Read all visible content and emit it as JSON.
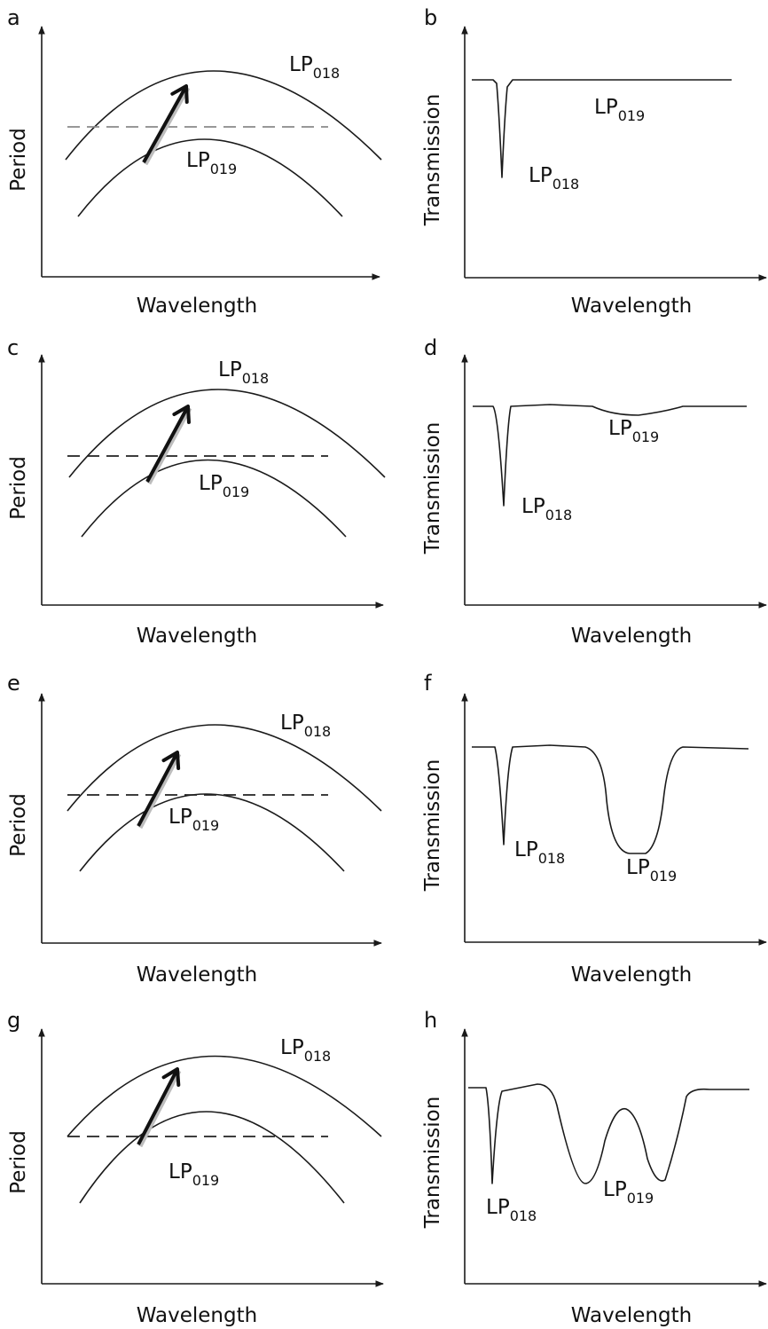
{
  "colors": {
    "ink": "#1a1a1a",
    "dash_panel_a": "#8a8a8a",
    "dash": "#222222",
    "arrow": "#111111",
    "arrow_shadow": "#bdbdbd"
  },
  "chart_data": [
    {
      "panel": "a",
      "type": "line",
      "kind": "period",
      "xlabel": "Wavelength",
      "ylabel": "Period",
      "curves": [
        {
          "name": "LP",
          "sub": "018"
        },
        {
          "name": "LP",
          "sub": "019"
        }
      ],
      "grating_period": "below LP018 peak, above LP019 peak (no coupling to LP019)",
      "arrow": "LP019 to LP018"
    },
    {
      "panel": "b",
      "type": "line",
      "kind": "transmission",
      "xlabel": "Wavelength",
      "ylabel": "Transmission",
      "dips": [
        {
          "name": "LP",
          "sub": "018",
          "depth": "deep",
          "width": "narrow"
        }
      ],
      "legend_only": [
        {
          "name": "LP",
          "sub": "019"
        }
      ]
    },
    {
      "panel": "c",
      "type": "line",
      "kind": "period",
      "xlabel": "Wavelength",
      "ylabel": "Period",
      "curves": [
        {
          "name": "LP",
          "sub": "018"
        },
        {
          "name": "LP",
          "sub": "019"
        }
      ],
      "grating_period": "just above LP019 peak",
      "arrow": "LP019 to LP018"
    },
    {
      "panel": "d",
      "type": "line",
      "kind": "transmission",
      "xlabel": "Wavelength",
      "ylabel": "Transmission",
      "dips": [
        {
          "name": "LP",
          "sub": "018",
          "depth": "deep",
          "width": "narrow"
        },
        {
          "name": "LP",
          "sub": "019",
          "depth": "shallow",
          "width": "broad"
        }
      ]
    },
    {
      "panel": "e",
      "type": "line",
      "kind": "period",
      "xlabel": "Wavelength",
      "ylabel": "Period",
      "curves": [
        {
          "name": "LP",
          "sub": "018"
        },
        {
          "name": "LP",
          "sub": "019"
        }
      ],
      "grating_period": "tangent to LP019 peak",
      "arrow": "LP019 to LP018"
    },
    {
      "panel": "f",
      "type": "line",
      "kind": "transmission",
      "xlabel": "Wavelength",
      "ylabel": "Transmission",
      "dips": [
        {
          "name": "LP",
          "sub": "018",
          "depth": "deep",
          "width": "narrow"
        },
        {
          "name": "LP",
          "sub": "019",
          "depth": "deep",
          "width": "very broad"
        }
      ]
    },
    {
      "panel": "g",
      "type": "line",
      "kind": "period",
      "xlabel": "Wavelength",
      "ylabel": "Period",
      "curves": [
        {
          "name": "LP",
          "sub": "018"
        },
        {
          "name": "LP",
          "sub": "019"
        }
      ],
      "grating_period": "below LP019 peak (two crossings)",
      "arrow": "LP019 to LP018"
    },
    {
      "panel": "h",
      "type": "line",
      "kind": "transmission",
      "xlabel": "Wavelength",
      "ylabel": "Transmission",
      "dips": [
        {
          "name": "LP",
          "sub": "018",
          "depth": "deep",
          "width": "narrow"
        },
        {
          "name": "LP",
          "sub": "019",
          "depth": "deep",
          "width": "dual dip"
        }
      ]
    }
  ]
}
